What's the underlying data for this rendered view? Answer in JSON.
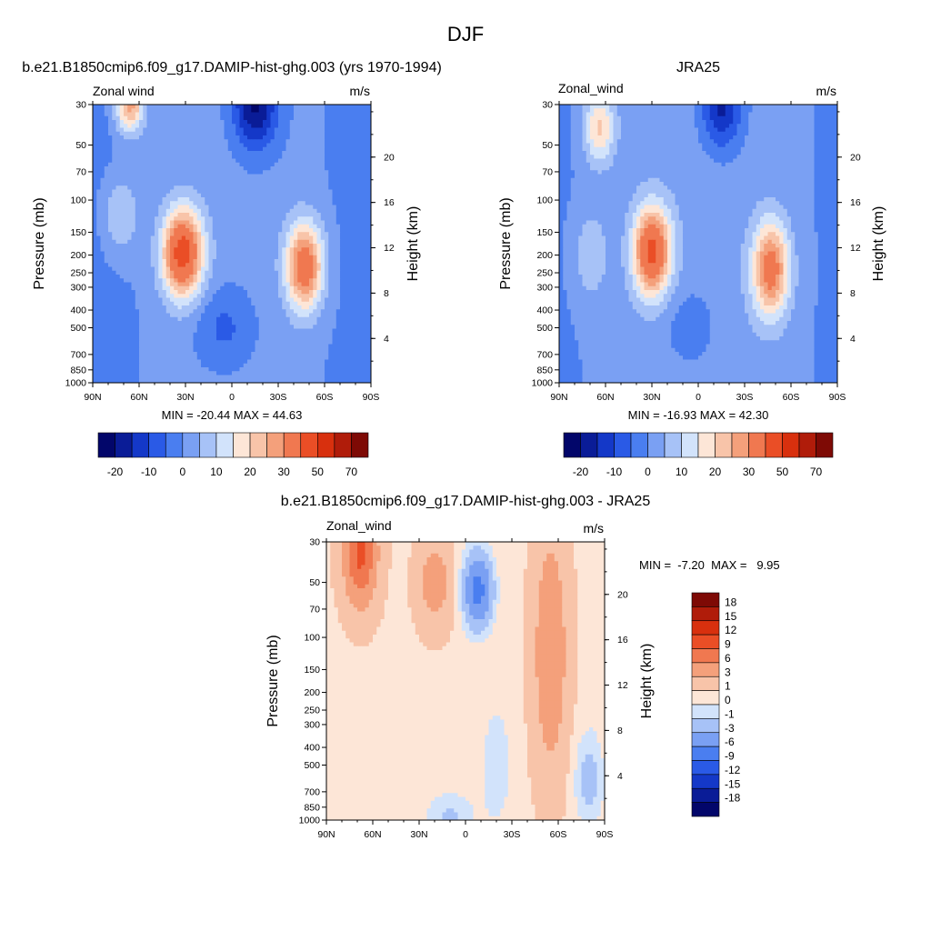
{
  "figure_title": "DJF",
  "chart_data": [
    {
      "type": "heatmap",
      "id": "model",
      "title": "b.e21.B1850cmip6.f09_g17.DAMIP-hist-ghg.003 (yrs 1970-1994)",
      "left_label": "Zonal wind",
      "units": "m/s",
      "ylabel": "Pressure (mb)",
      "ylabel_right": "Height (km)",
      "xlabel": "",
      "xlim": [
        90,
        -90
      ],
      "ylim": [
        1000,
        30
      ],
      "x_ticks": [
        "90N",
        "60N",
        "30N",
        "0",
        "30S",
        "60S",
        "90S"
      ],
      "x_tick_values": [
        90,
        60,
        30,
        0,
        -30,
        -60,
        -90
      ],
      "pressure_ticks": [
        30,
        50,
        70,
        100,
        150,
        200,
        250,
        300,
        400,
        500,
        700,
        850,
        1000
      ],
      "height_ticks": [
        20,
        16,
        12,
        8,
        4
      ],
      "min_max": "MIN = -20.44  MAX =  44.63",
      "min": -20.44,
      "max": 44.63,
      "colorbar_ticks": [
        "-20",
        "-10",
        "0",
        "10",
        "20",
        "30",
        "50",
        "70"
      ],
      "features": [
        {
          "type": "jet",
          "lat": 32,
          "p": 195,
          "peak": 44.6
        },
        {
          "type": "jet",
          "lat": -47,
          "p": 230,
          "peak": 38
        },
        {
          "type": "jet",
          "lat": 65,
          "p": 30,
          "peak": 30
        },
        {
          "type": "easterly",
          "lat": -15,
          "p": 30,
          "peak": -20.4
        }
      ]
    },
    {
      "type": "heatmap",
      "id": "obs",
      "title": "JRA25",
      "left_label": "Zonal_wind",
      "units": "m/s",
      "ylabel": "Pressure (mb)",
      "ylabel_right": "Height (km)",
      "xlabel": "",
      "xlim": [
        90,
        -90
      ],
      "ylim": [
        1000,
        30
      ],
      "x_ticks": [
        "90N",
        "60N",
        "30N",
        "0",
        "30S",
        "60S",
        "90S"
      ],
      "x_tick_values": [
        90,
        60,
        30,
        0,
        -30,
        -60,
        -90
      ],
      "pressure_ticks": [
        30,
        50,
        70,
        100,
        150,
        200,
        250,
        300,
        400,
        500,
        700,
        850,
        1000
      ],
      "height_ticks": [
        20,
        16,
        12,
        8,
        4
      ],
      "min_max": "MIN = -16.93  MAX =  42.30",
      "min": -16.93,
      "max": 42.3,
      "colorbar_ticks": [
        "-20",
        "-10",
        "0",
        "10",
        "20",
        "30",
        "50",
        "70"
      ],
      "features": [
        {
          "type": "jet",
          "lat": 30,
          "p": 190,
          "peak": 42.3
        },
        {
          "type": "jet",
          "lat": -47,
          "p": 240,
          "peak": 34
        },
        {
          "type": "jet",
          "lat": 65,
          "p": 40,
          "peak": 22
        },
        {
          "type": "easterly",
          "lat": -15,
          "p": 30,
          "peak": -16.9
        }
      ]
    },
    {
      "type": "heatmap",
      "id": "diff",
      "title": "b.e21.B1850cmip6.f09_g17.DAMIP-hist-ghg.003 - JRA25",
      "left_label": "Zonal_wind",
      "units": "m/s",
      "ylabel": "Pressure (mb)",
      "ylabel_right": "Height (km)",
      "xlabel": "",
      "xlim": [
        90,
        -90
      ],
      "ylim": [
        1000,
        30
      ],
      "x_ticks": [
        "90N",
        "60N",
        "30N",
        "0",
        "30S",
        "60S",
        "90S"
      ],
      "x_tick_values": [
        90,
        60,
        30,
        0,
        -30,
        -60,
        -90
      ],
      "pressure_ticks": [
        30,
        50,
        70,
        100,
        150,
        200,
        250,
        300,
        400,
        500,
        700,
        850,
        1000
      ],
      "height_ticks": [
        20,
        16,
        12,
        8,
        4
      ],
      "min_max": "MIN =  -7.20  MAX =   9.95",
      "min": -7.2,
      "max": 9.95,
      "colorbar_ticks": [
        "18",
        "15",
        "12",
        "9",
        "6",
        "3",
        "1",
        "0",
        "-1",
        "-3",
        "-6",
        "-9",
        "-12",
        "-15",
        "-18"
      ],
      "features": [
        {
          "type": "positive",
          "lat": 68,
          "p": 35,
          "peak": 9.95
        },
        {
          "type": "negative",
          "lat": -8,
          "p": 55,
          "peak": -7.2
        },
        {
          "type": "positive",
          "lat": -55,
          "p": 120,
          "peak": 5
        }
      ]
    }
  ],
  "colormaps": {
    "full": [
      "#02066a",
      "#0a1c97",
      "#1438c8",
      "#2a5ae6",
      "#4a7ef0",
      "#7aa0f3",
      "#a7c2f7",
      "#d2e3fb",
      "#fde6d7",
      "#f8c4a9",
      "#f4a07b",
      "#f07850",
      "#ea4e26",
      "#d8300e",
      "#b01c0a",
      "#7e0a05"
    ]
  }
}
